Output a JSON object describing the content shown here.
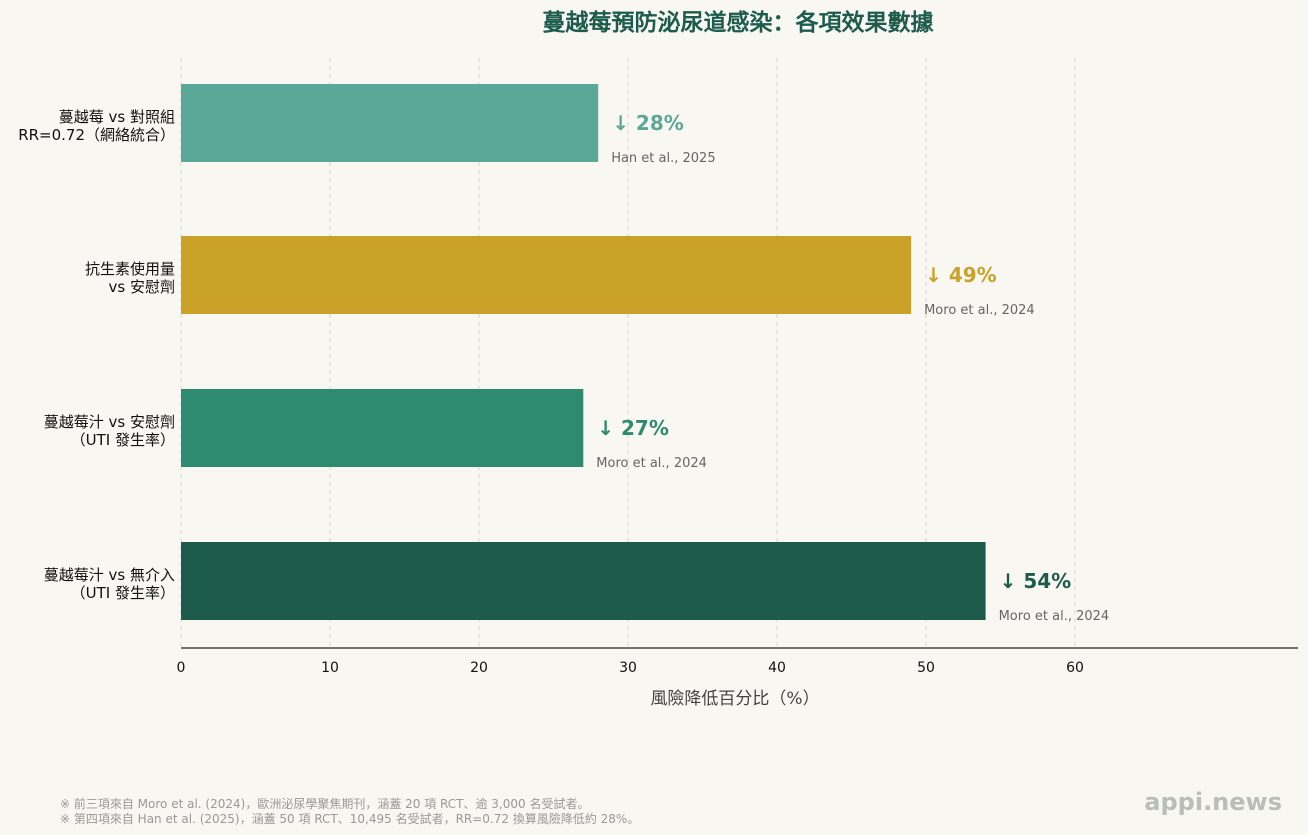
{
  "chart_data": {
    "type": "bar",
    "orientation": "horizontal",
    "title": "蔓越莓預防泌尿道感染：各項效果數據",
    "xlabel": "風險降低百分比（%）",
    "xlim": [
      0,
      75
    ],
    "xticks": [
      0,
      10,
      20,
      30,
      40,
      50,
      60
    ],
    "grid": true,
    "categories": [
      [
        "蔓越莓 vs 對照組",
        "RR=0.72（網絡統合）"
      ],
      [
        "抗生素使用量",
        "vs 安慰劑"
      ],
      [
        "蔓越莓汁 vs 安慰劑",
        "（UTI 發生率）"
      ],
      [
        "蔓越莓汁 vs 無介入",
        "（UTI 發生率）"
      ]
    ],
    "values": [
      28,
      49,
      27,
      54
    ],
    "value_labels": [
      "↓ 28%",
      "↓ 49%",
      "↓ 27%",
      "↓ 54%"
    ],
    "sources": [
      "Han et al., 2025",
      "Moro et al., 2024",
      "Moro et al., 2024",
      "Moro et al., 2024"
    ],
    "colors": [
      "#5ba898",
      "#c9a227",
      "#2e8b6f",
      "#1d5c4c"
    ]
  },
  "footnotes": [
    "※ 前三項來自 Moro et al. (2024)，歐洲泌尿學聚焦期刊，涵蓋 20 項 RCT、逾 3,000 名受試者。",
    "※ 第四項來自 Han et al. (2025)，涵蓋 50 項 RCT、10,495 名受試者，RR=0.72 換算風險降低約 28%。"
  ],
  "brand": "appi.news"
}
